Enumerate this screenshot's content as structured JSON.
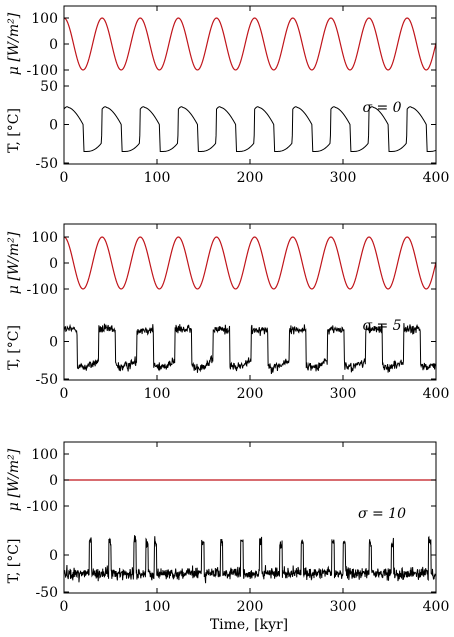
{
  "colors": {
    "forcing": "#c0151b",
    "temperature": "#000000",
    "axes": "#000000"
  },
  "figure": {
    "xlabel": "Time, [kyr]"
  },
  "chart_data": [
    {
      "type": "line",
      "panel": "sigma-0",
      "sigma_label": "σ = 0",
      "xlim": [
        0,
        400
      ],
      "xticks": [
        "0",
        "100",
        "200",
        "300",
        "400"
      ],
      "mu_axis": {
        "label": "μ [W/m²]",
        "ylim": [
          -100,
          100
        ],
        "ticks": [
          "100",
          "0",
          "-100"
        ]
      },
      "t_axis": {
        "label": "T, [°C]",
        "ylim": [
          -50,
          50
        ],
        "ticks": [
          "50",
          "0",
          "-50"
        ]
      },
      "series": [
        {
          "role": "forcing",
          "shape": "sinusoid",
          "amplitude": 100,
          "period_kyr": 41,
          "phase_offset_kyr": 0
        },
        {
          "role": "temperature",
          "shape": "relaxation",
          "warm_level": 20,
          "cold_level": -35,
          "noise": 0
        }
      ]
    },
    {
      "type": "line",
      "panel": "sigma-5",
      "sigma_label": "σ = 5",
      "xlim": [
        0,
        400
      ],
      "xticks": [
        "0",
        "100",
        "200",
        "300",
        "400"
      ],
      "mu_axis": {
        "label": "μ [W/m²]",
        "ylim": [
          -100,
          100
        ],
        "ticks": [
          "100",
          "0",
          "-100"
        ]
      },
      "t_axis": {
        "label": "T, [°C]",
        "ylim": [
          -50,
          50
        ],
        "ticks": [
          "0",
          "-50"
        ]
      },
      "series": [
        {
          "role": "forcing",
          "shape": "sinusoid",
          "amplitude": 100,
          "period_kyr": 41,
          "phase_offset_kyr": 0
        },
        {
          "role": "temperature",
          "shape": "noisy-switching",
          "warm_level": 20,
          "cold_level": -30,
          "noise": 5
        }
      ]
    },
    {
      "type": "line",
      "panel": "sigma-10",
      "sigma_label": "σ = 10",
      "xlim": [
        0,
        400
      ],
      "xticks": [
        "0",
        "100",
        "200",
        "300",
        "400"
      ],
      "mu_axis": {
        "label": "μ [W/m²]",
        "ylim": [
          -100,
          100
        ],
        "ticks": [
          "100",
          "0",
          "-100"
        ]
      },
      "t_axis": {
        "label": "T, [°C]",
        "ylim": [
          -50,
          50
        ],
        "ticks": [
          "0",
          "-50"
        ]
      },
      "series": [
        {
          "role": "forcing",
          "shape": "constant",
          "value": 0
        },
        {
          "role": "temperature",
          "shape": "noisy-cold",
          "warm_level": 20,
          "cold_level": -25,
          "noise": 10
        }
      ]
    }
  ]
}
